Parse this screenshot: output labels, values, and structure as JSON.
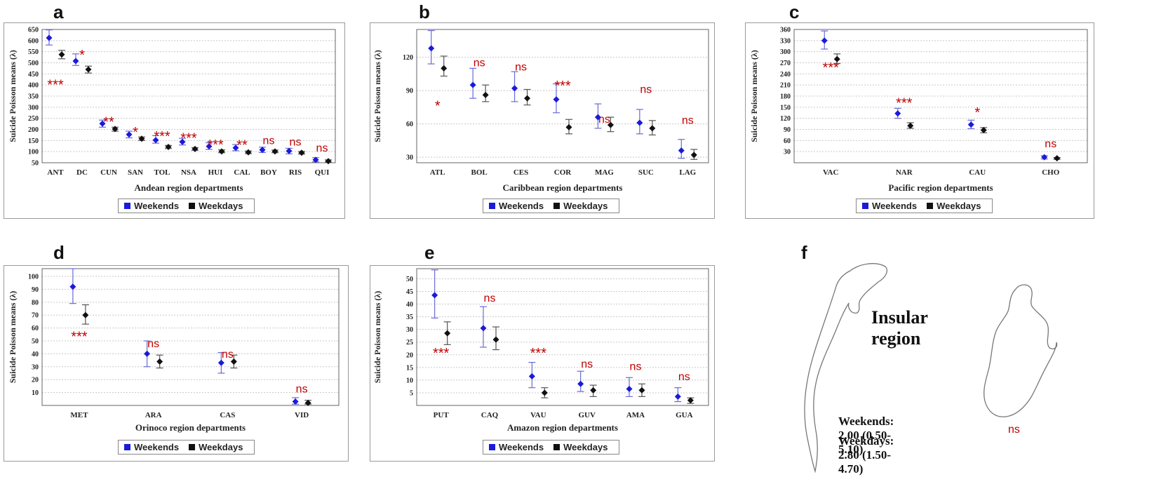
{
  "colors": {
    "weekends": "#1a1adb",
    "weekdays": "#111111",
    "significance": "#c00000"
  },
  "legend": {
    "weekends": "Weekends",
    "weekdays": "Weekdays"
  },
  "chart_data": [
    {
      "panel": "a",
      "type": "scatter",
      "ylabel": "Suicide Poisson means (λ)",
      "xlabel": "Andean region departments",
      "categories": [
        "ANT",
        "DC",
        "CUN",
        "SAN",
        "TOL",
        "NSA",
        "HUI",
        "CAL",
        "BOY",
        "RIS",
        "QUI"
      ],
      "ylim": [
        50,
        650
      ],
      "yticks": [
        50,
        100,
        150,
        200,
        250,
        300,
        350,
        400,
        450,
        500,
        550,
        600,
        650
      ],
      "series": [
        {
          "name": "Weekends",
          "values": [
            612,
            508,
            226,
            177,
            152,
            144,
            124,
            117,
            108,
            103,
            63
          ],
          "lower": [
            580,
            488,
            210,
            162,
            138,
            130,
            110,
            104,
            96,
            90,
            54
          ],
          "upper": [
            648,
            540,
            242,
            192,
            172,
            160,
            140,
            132,
            120,
            115,
            73
          ]
        },
        {
          "name": "Weekdays",
          "values": [
            537,
            470,
            202,
            158,
            121,
            112,
            101,
            97,
            101,
            95,
            57
          ],
          "lower": [
            518,
            454,
            192,
            150,
            114,
            106,
            95,
            91,
            95,
            89,
            52
          ],
          "upper": [
            556,
            485,
            210,
            166,
            128,
            118,
            108,
            103,
            107,
            101,
            63
          ]
        }
      ],
      "significance": [
        "***",
        "*",
        "**",
        "*",
        "***",
        "***",
        "***",
        "**",
        "ns",
        "ns",
        "ns"
      ],
      "sig_values": [
        405,
        540,
        238,
        192,
        173,
        165,
        135,
        133,
        133,
        128,
        100
      ]
    },
    {
      "panel": "b",
      "type": "scatter",
      "ylabel": "Suicide Poisson means (λ)",
      "xlabel": "Caribbean region departments",
      "categories": [
        "ATL",
        "BOL",
        "CES",
        "COR",
        "MAG",
        "SUC",
        "LAG"
      ],
      "ylim": [
        25,
        145
      ],
      "yticks": [
        30,
        60,
        90,
        120
      ],
      "series": [
        {
          "name": "Weekends",
          "values": [
            128,
            95,
            92,
            82,
            66,
            61,
            36
          ],
          "lower": [
            114,
            83,
            80,
            70,
            56,
            51,
            29
          ],
          "upper": [
            144,
            110,
            107,
            96,
            78,
            73,
            46
          ]
        },
        {
          "name": "Weekdays",
          "values": [
            110,
            86,
            83,
            57,
            59,
            56,
            32
          ],
          "lower": [
            103,
            80,
            77,
            51,
            53,
            50,
            28
          ],
          "upper": [
            121,
            95,
            91,
            64,
            66,
            63,
            37
          ]
        }
      ],
      "significance": [
        "*",
        "ns",
        "ns",
        "***",
        "ns",
        "ns",
        "ns"
      ],
      "sig_values": [
        77,
        112,
        108,
        95,
        61,
        88,
        60
      ]
    },
    {
      "panel": "c",
      "type": "scatter",
      "ylabel": "Suicide Poisson means (λ)",
      "xlabel": "Pacific region departments",
      "categories": [
        "VAC",
        "NAR",
        "CAU",
        "CHO"
      ],
      "ylim": [
        0,
        360
      ],
      "yticks": [
        30,
        60,
        90,
        120,
        150,
        180,
        210,
        240,
        270,
        300,
        330,
        360
      ],
      "series": [
        {
          "name": "Weekends",
          "values": [
            330,
            133,
            103,
            15
          ],
          "lower": [
            307,
            120,
            92,
            10
          ],
          "upper": [
            356,
            147,
            115,
            19
          ]
        },
        {
          "name": "Weekdays",
          "values": [
            280,
            100,
            88,
            12
          ],
          "lower": [
            268,
            93,
            81,
            9
          ],
          "upper": [
            294,
            108,
            95,
            14
          ]
        }
      ],
      "significance": [
        "***",
        "***",
        "*",
        "ns"
      ],
      "sig_values": [
        260,
        164,
        138,
        42
      ]
    },
    {
      "panel": "d",
      "type": "scatter",
      "ylabel": "Suicide Poisson means (λ)",
      "xlabel": "Orinoco region departments",
      "categories": [
        "MET",
        "ARA",
        "CAS",
        "VID"
      ],
      "ylim": [
        0,
        106
      ],
      "yticks": [
        10,
        20,
        30,
        40,
        50,
        60,
        70,
        80,
        90,
        100
      ],
      "series": [
        {
          "name": "Weekends",
          "values": [
            92,
            40,
            33,
            3
          ],
          "lower": [
            79,
            30,
            25,
            1
          ],
          "upper": [
            106,
            50,
            41,
            6
          ]
        },
        {
          "name": "Weekdays",
          "values": [
            70,
            34,
            34,
            2
          ],
          "lower": [
            63,
            29,
            29,
            1
          ],
          "upper": [
            78,
            39,
            39,
            4
          ]
        }
      ],
      "significance": [
        "***",
        "ns",
        "ns",
        "ns"
      ],
      "sig_values": [
        54,
        45,
        37,
        10
      ]
    },
    {
      "panel": "e",
      "type": "scatter",
      "ylabel": "Suicide Poisson means (λ)",
      "xlabel": "Amazon region departments",
      "categories": [
        "PUT",
        "CAQ",
        "VAU",
        "GUV",
        "AMA",
        "GUA"
      ],
      "ylim": [
        0,
        54
      ],
      "yticks": [
        5,
        10,
        15,
        20,
        25,
        30,
        35,
        40,
        45,
        50
      ],
      "series": [
        {
          "name": "Weekends",
          "values": [
            43.5,
            30.5,
            11.5,
            8.5,
            6.5,
            3.5
          ],
          "lower": [
            34.5,
            23,
            7,
            5.5,
            3.5,
            1.5
          ],
          "upper": [
            53.5,
            39,
            17,
            13.5,
            11,
            7
          ]
        },
        {
          "name": "Weekdays",
          "values": [
            28.5,
            26,
            5,
            6,
            6,
            2
          ],
          "lower": [
            24,
            22,
            3,
            3.5,
            3.5,
            0.8
          ],
          "upper": [
            33,
            31,
            7,
            8,
            8.5,
            3
          ]
        }
      ],
      "significance": [
        "***",
        "ns",
        "***",
        "ns",
        "ns",
        "ns"
      ],
      "sig_values": [
        21,
        41,
        21,
        15,
        14,
        10
      ]
    }
  ],
  "insular": {
    "panel": "f",
    "title": "Insular region",
    "weekends": "Weekends: 2.00 (0.50-5.10)",
    "weekdays": "Weekdays: 2.80 (1.50-4.70)",
    "significance": "ns"
  }
}
